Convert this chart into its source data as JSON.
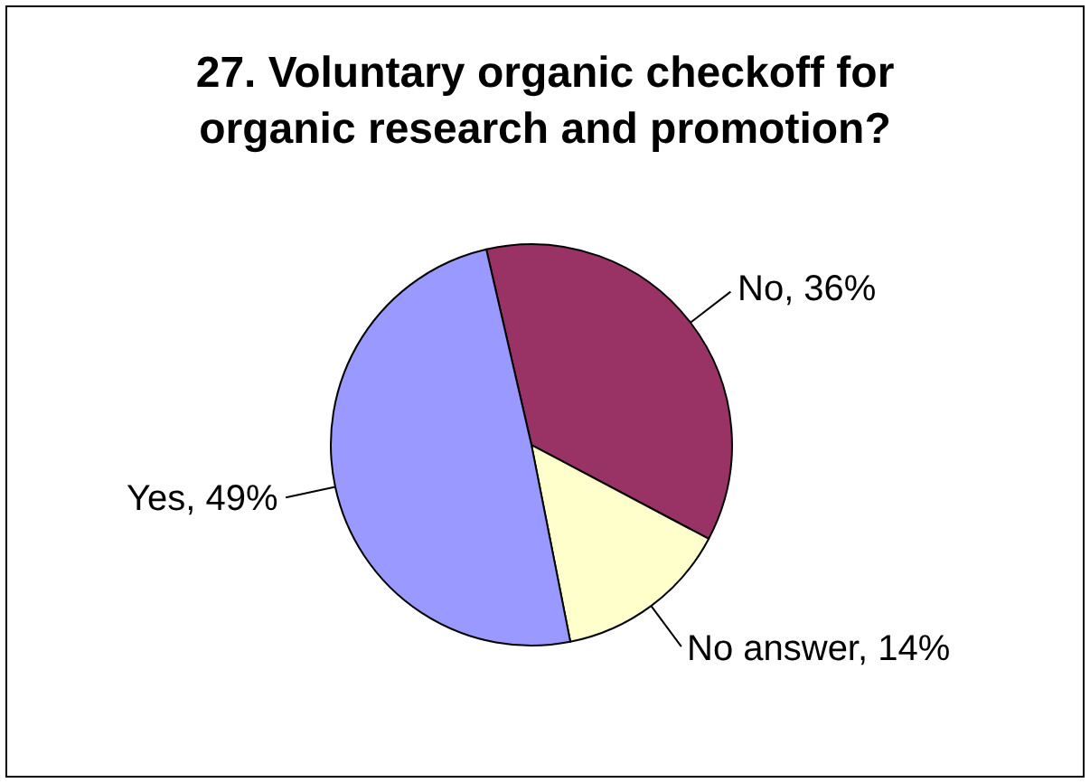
{
  "chart_data": {
    "type": "pie",
    "title": "27. Voluntary organic checkoff for organic research and promotion?",
    "categories": [
      "No",
      "No answer",
      "Yes"
    ],
    "values": [
      36,
      14,
      49
    ],
    "value_labels": [
      "36%",
      "14%",
      "49%"
    ],
    "colors": [
      "#993366",
      "#ffffcc",
      "#9999ff"
    ],
    "legend": false
  }
}
